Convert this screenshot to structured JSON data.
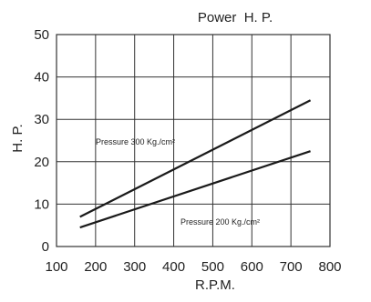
{
  "chart_data": {
    "type": "line",
    "title": "Power  H. P.",
    "xlabel": "R.P.M.",
    "ylabel": "H. P.",
    "xlim": [
      100,
      800
    ],
    "ylim": [
      0,
      50
    ],
    "xticks": [
      100,
      200,
      300,
      400,
      500,
      600,
      700,
      800
    ],
    "yticks": [
      0,
      10,
      20,
      30,
      40,
      50
    ],
    "grid": true,
    "series": [
      {
        "name": "Pressure 300 Kg./cm²",
        "x": [
          160,
          750
        ],
        "y": [
          7,
          34.5
        ]
      },
      {
        "name": "Pressure 200 Kg./cm²",
        "x": [
          160,
          750
        ],
        "y": [
          4.5,
          22.5
        ]
      }
    ]
  }
}
